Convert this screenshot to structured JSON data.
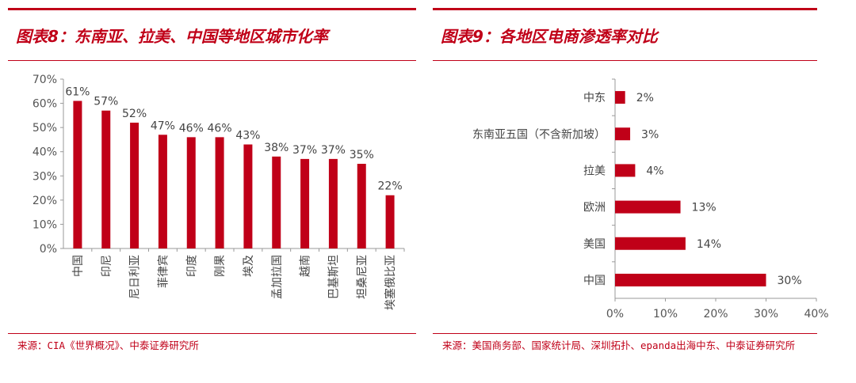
{
  "left": {
    "title": "图表8：东南亚、拉美、中国等地区城市化率",
    "source": "来源：CIA《世界概况》、中泰证券研究所",
    "chart_data": {
      "type": "bar",
      "orientation": "vertical",
      "categories": [
        "中国",
        "印尼",
        "尼日利亚",
        "菲律宾",
        "印度",
        "刚果",
        "埃及",
        "孟加拉国",
        "越南",
        "巴基斯坦",
        "坦桑尼亚",
        "埃塞俄比亚"
      ],
      "values": [
        61,
        57,
        52,
        47,
        46,
        46,
        43,
        38,
        37,
        37,
        35,
        22
      ],
      "data_labels": [
        "61%",
        "57%",
        "52%",
        "47%",
        "46%",
        "46%",
        "43%",
        "38%",
        "37%",
        "37%",
        "35%",
        "22%"
      ],
      "y_ticks": [
        "0%",
        "10%",
        "20%",
        "30%",
        "40%",
        "50%",
        "60%",
        "70%"
      ],
      "ylim": [
        0,
        70
      ],
      "grid": false,
      "bar_color": "#c00018"
    }
  },
  "right": {
    "title": "图表9：各地区电商渗透率对比",
    "source": "来源：美国商务部、国家统计局、深圳拓扑、epanda出海中东、中泰证券研究所",
    "chart_data": {
      "type": "bar",
      "orientation": "horizontal",
      "categories": [
        "中东",
        "东南亚五国（不含新加坡）",
        "拉美",
        "欧洲",
        "美国",
        "中国"
      ],
      "values": [
        2,
        3,
        4,
        13,
        14,
        30
      ],
      "data_labels": [
        "2%",
        "3%",
        "4%",
        "13%",
        "14%",
        "30%"
      ],
      "x_ticks": [
        "0%",
        "10%",
        "20%",
        "30%",
        "40%"
      ],
      "xlim": [
        0,
        40
      ],
      "grid": false,
      "bar_color": "#c00018"
    }
  }
}
